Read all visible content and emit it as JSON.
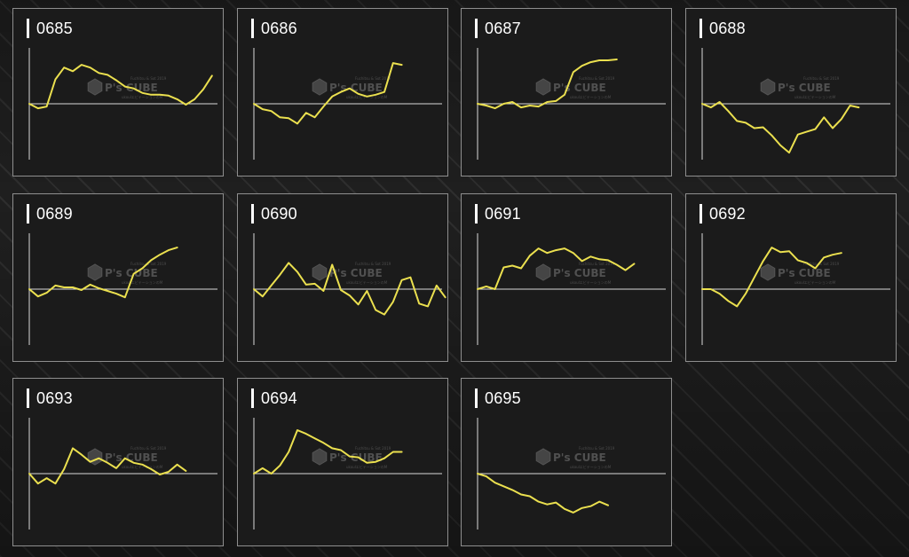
{
  "background": "dark diamond-plate pattern",
  "colors": {
    "line": "#ebe04f",
    "axis": "#d9d9d9",
    "panel": "#1b1b1b",
    "border": "#8e8e8e"
  },
  "watermark": {
    "brand": "P's CUBE",
    "small_top": "Fuchitsu & Sot 2019",
    "small_bottom": "ukoulエビテーションのM"
  },
  "chart_data": [
    {
      "type": "line",
      "title": "0685",
      "x_range": [
        0,
        20
      ],
      "y_range": [
        -6,
        6
      ],
      "grid": false,
      "series": [
        {
          "values": [
            0,
            -0.5,
            -0.3,
            2.7,
            4.0,
            3.6,
            4.3,
            4.0,
            3.4,
            3.2,
            2.6,
            1.9,
            1.7,
            1.2,
            1.0,
            1.0,
            0.9,
            0.5,
            -0.1,
            0.5,
            1.6,
            3.1
          ]
        }
      ]
    },
    {
      "type": "line",
      "title": "0686",
      "x_range": [
        0,
        20
      ],
      "y_range": [
        -6,
        6
      ],
      "grid": false,
      "series": [
        {
          "values": [
            0,
            -0.6,
            -0.8,
            -1.5,
            -1.6,
            -2.2,
            -1.0,
            -1.5,
            -0.3,
            0.8,
            1.3,
            1.7,
            1.1,
            0.8,
            1.0,
            1.3,
            4.5,
            4.3
          ]
        }
      ]
    },
    {
      "type": "line",
      "title": "0687",
      "x_range": [
        0,
        20
      ],
      "y_range": [
        -6,
        6
      ],
      "grid": false,
      "series": [
        {
          "values": [
            0,
            -0.2,
            -0.5,
            0,
            0.2,
            -0.4,
            -0.2,
            -0.3,
            0.2,
            0.3,
            1.0,
            3.5,
            4.2,
            4.6,
            4.8,
            4.8,
            4.9
          ]
        }
      ]
    },
    {
      "type": "line",
      "title": "0688",
      "x_range": [
        0,
        20
      ],
      "y_range": [
        -6,
        6
      ],
      "grid": false,
      "series": [
        {
          "values": [
            0,
            -0.4,
            0.2,
            -0.8,
            -1.9,
            -2.1,
            -2.7,
            -2.6,
            -3.5,
            -4.6,
            -5.4,
            -3.4,
            -3.1,
            -2.8,
            -1.5,
            -2.7,
            -1.7,
            -0.2,
            -0.4
          ]
        }
      ]
    },
    {
      "type": "line",
      "title": "0689",
      "x_range": [
        0,
        20
      ],
      "y_range": [
        -6,
        6
      ],
      "grid": false,
      "series": [
        {
          "values": [
            0,
            -0.8,
            -0.4,
            0.4,
            0.2,
            0.2,
            -0.1,
            0.5,
            0.1,
            -0.2,
            -0.5,
            -0.9,
            1.7,
            2.3,
            3.2,
            3.8,
            4.3,
            4.6
          ]
        }
      ]
    },
    {
      "type": "line",
      "title": "0690",
      "x_range": [
        0,
        20
      ],
      "y_range": [
        -6,
        6
      ],
      "grid": false,
      "series": [
        {
          "values": [
            0,
            -0.8,
            0.4,
            1.6,
            2.9,
            1.9,
            0.5,
            0.6,
            -0.2,
            2.7,
            -0.1,
            -0.7,
            -1.7,
            -0.2,
            -2.3,
            -2.8,
            -1.4,
            1.0,
            1.3,
            -1.6,
            -1.9,
            0.4,
            -0.9
          ]
        }
      ]
    },
    {
      "type": "line",
      "title": "0691",
      "x_range": [
        0,
        20
      ],
      "y_range": [
        -6,
        6
      ],
      "grid": false,
      "series": [
        {
          "values": [
            0,
            0.3,
            0,
            2.4,
            2.6,
            2.3,
            3.7,
            4.5,
            4.0,
            4.3,
            4.5,
            4.0,
            3.1,
            3.6,
            3.3,
            3.2,
            2.7,
            2.1,
            2.8
          ]
        }
      ]
    },
    {
      "type": "line",
      "title": "0692",
      "x_range": [
        0,
        20
      ],
      "y_range": [
        -6,
        6
      ],
      "grid": false,
      "series": [
        {
          "values": [
            0,
            0,
            -0.5,
            -1.3,
            -1.9,
            -0.5,
            1.3,
            3.1,
            4.6,
            4.1,
            4.2,
            3.2,
            2.9,
            2.3,
            3.5,
            3.8,
            4.0
          ]
        }
      ]
    },
    {
      "type": "line",
      "title": "0693",
      "x_range": [
        0,
        20
      ],
      "y_range": [
        -6,
        6
      ],
      "grid": false,
      "series": [
        {
          "values": [
            0,
            -1.1,
            -0.5,
            -1.1,
            0.5,
            2.8,
            2.1,
            1.3,
            1.7,
            1.2,
            0.6,
            1.7,
            1.2,
            1.0,
            0.5,
            -0.1,
            0.2,
            1.0,
            0.3
          ]
        }
      ]
    },
    {
      "type": "line",
      "title": "0694",
      "x_range": [
        0,
        20
      ],
      "y_range": [
        -6,
        6
      ],
      "grid": false,
      "series": [
        {
          "values": [
            0,
            0.6,
            0,
            0.9,
            2.4,
            4.8,
            4.4,
            3.9,
            3.4,
            2.8,
            2.6,
            1.9,
            1.8,
            1.2,
            1.3,
            1.7,
            2.4,
            2.4
          ]
        }
      ]
    },
    {
      "type": "line",
      "title": "0695",
      "x_range": [
        0,
        20
      ],
      "y_range": [
        -6,
        6
      ],
      "grid": false,
      "series": [
        {
          "values": [
            0,
            -0.3,
            -1.0,
            -1.4,
            -1.8,
            -2.3,
            -2.5,
            -3.1,
            -3.4,
            -3.2,
            -3.9,
            -4.3,
            -3.8,
            -3.6,
            -3.1,
            -3.5
          ]
        }
      ]
    }
  ]
}
